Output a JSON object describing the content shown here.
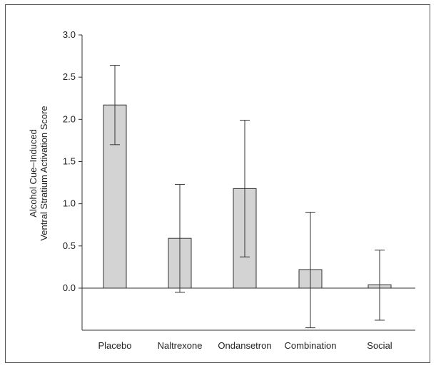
{
  "chart_data": {
    "type": "bar",
    "categories": [
      "Placebo",
      "Naltrexone",
      "Ondansetron",
      "Combination",
      "Social"
    ],
    "values": [
      2.17,
      0.59,
      1.18,
      0.22,
      0.04
    ],
    "error_upper": [
      2.64,
      1.23,
      1.99,
      0.9,
      0.45
    ],
    "error_lower": [
      1.7,
      -0.05,
      0.37,
      -0.47,
      -0.38
    ],
    "ylabel_line1": "Alcohol Cue–Induced",
    "ylabel_line2": "Ventral Stratium Activation Score",
    "xlabel": "",
    "yticks": [
      "0.0",
      "0.5",
      "1.0",
      "1.5",
      "2.0",
      "2.5",
      "3.0"
    ],
    "ylim": [
      -0.5,
      3.0
    ],
    "grid": false,
    "colors": {
      "bar_fill": "#d3d3d3",
      "bar_stroke": "#333333",
      "axis": "#333333"
    }
  }
}
